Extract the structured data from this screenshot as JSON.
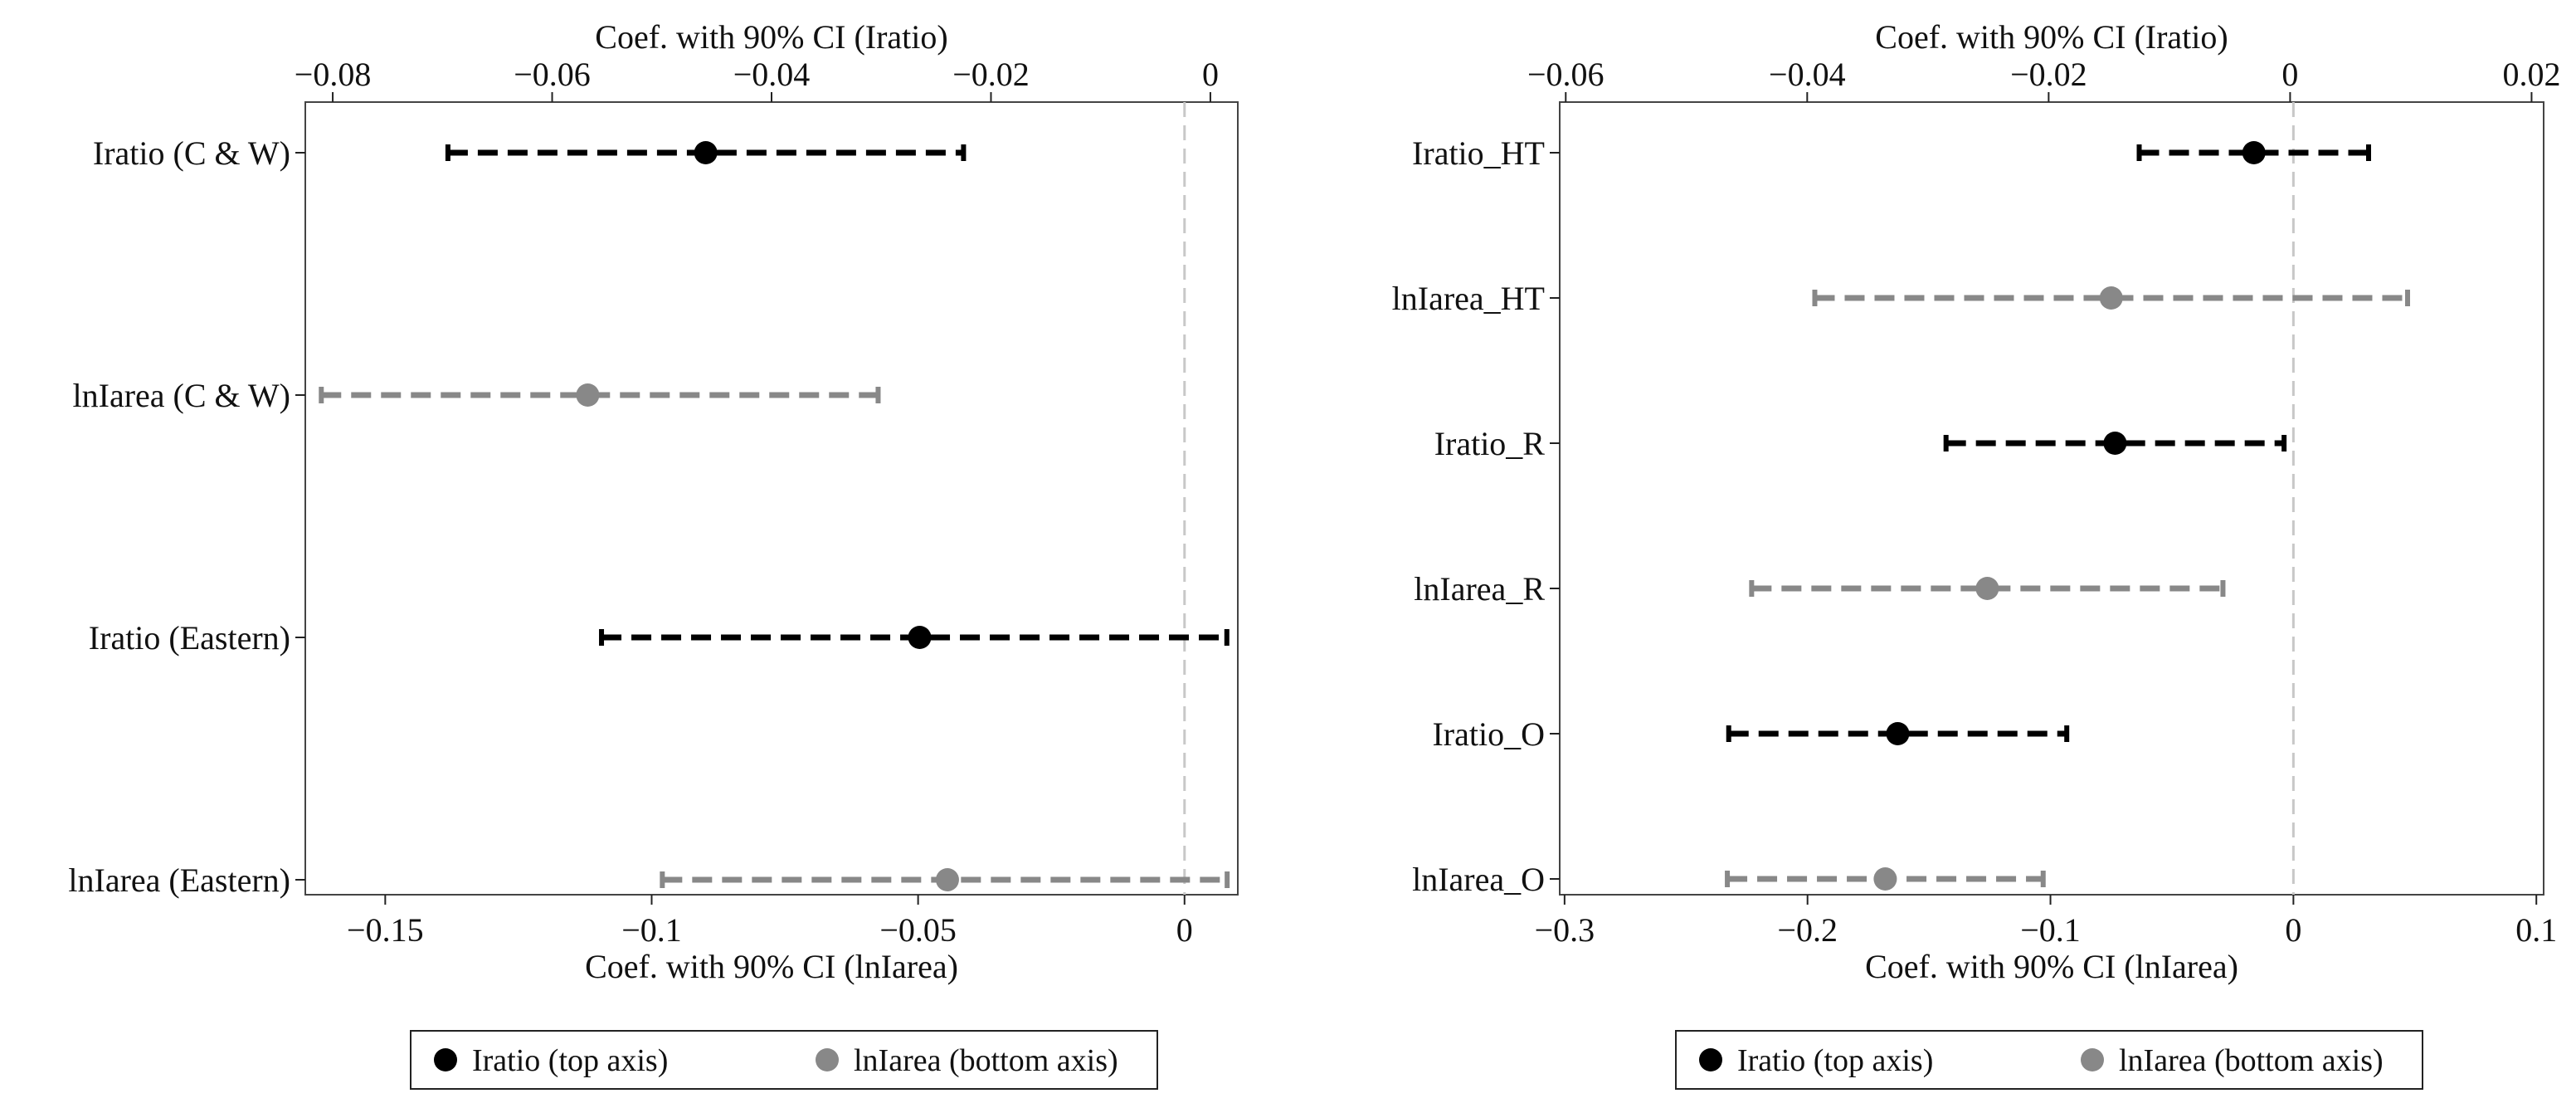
{
  "colors": {
    "Iratio": "#000000",
    "lnIarea": "#888888",
    "zero_line": "#c8c8c8",
    "frame": "#444444"
  },
  "chart_data": [
    {
      "type": "coefficient-plot",
      "top_axis_title": "Coef. with 90% CI (Iratio)",
      "bottom_axis_title": "Coef. with 90% CI (lnIarea)",
      "top_axis": {
        "min": -0.0825,
        "max": 0.0025,
        "ticks": [
          -0.08,
          -0.06,
          -0.04,
          -0.02,
          0
        ],
        "tick_labels": [
          "−0.08",
          "−0.06",
          "−0.04",
          "−0.02",
          "0"
        ]
      },
      "bottom_axis": {
        "min": -0.165,
        "max": 0.01,
        "ticks": [
          -0.15,
          -0.1,
          -0.05,
          0
        ],
        "tick_labels": [
          "−0.15",
          "−0.1",
          "−0.05",
          "0"
        ]
      },
      "zero_line_value_bottom": 0,
      "rows": [
        {
          "label": "Iratio (C & W)",
          "series": "Iratio",
          "axis": "top",
          "coef": -0.046,
          "lo": -0.0695,
          "hi": -0.0225
        },
        {
          "label": "lnIarea (C & W)",
          "series": "lnIarea",
          "axis": "bottom",
          "coef": -0.112,
          "lo": -0.162,
          "hi": -0.0575
        },
        {
          "label": "Iratio (Eastern)",
          "series": "Iratio",
          "axis": "top",
          "coef": -0.0265,
          "lo": -0.0555,
          "hi": 0.0015
        },
        {
          "label": "lnIarea (Eastern)",
          "series": "lnIarea",
          "axis": "bottom",
          "coef": -0.0445,
          "lo": -0.098,
          "hi": 0.008
        }
      ],
      "legend": [
        {
          "series": "Iratio",
          "label": "Iratio (top axis)"
        },
        {
          "series": "lnIarea",
          "label": "lnIarea (bottom axis)"
        }
      ]
    },
    {
      "type": "coefficient-plot",
      "top_axis_title": "Coef. with 90% CI (Iratio)",
      "bottom_axis_title": "Coef. with 90% CI (lnIarea)",
      "top_axis": {
        "min": -0.0605,
        "max": 0.021,
        "ticks": [
          -0.06,
          -0.04,
          -0.02,
          0,
          0.02
        ],
        "tick_labels": [
          "−0.06",
          "−0.04",
          "−0.02",
          "0",
          "0.02"
        ]
      },
      "bottom_axis": {
        "min": -0.302,
        "max": 0.103,
        "ticks": [
          -0.3,
          -0.2,
          -0.1,
          0,
          0.1
        ],
        "tick_labels": [
          "−0.3",
          "−0.2",
          "−0.1",
          "0",
          "0.1"
        ]
      },
      "zero_line_value_bottom": 0,
      "rows": [
        {
          "label": "Iratio_HT",
          "series": "Iratio",
          "axis": "top",
          "coef": -0.003,
          "lo": -0.0125,
          "hi": 0.0065
        },
        {
          "label": "lnIarea_HT",
          "series": "lnIarea",
          "axis": "bottom",
          "coef": -0.075,
          "lo": -0.197,
          "hi": 0.047
        },
        {
          "label": "Iratio_R",
          "series": "Iratio",
          "axis": "top",
          "coef": -0.0145,
          "lo": -0.0285,
          "hi": -0.0005
        },
        {
          "label": "lnIarea_R",
          "series": "lnIarea",
          "axis": "bottom",
          "coef": -0.126,
          "lo": -0.223,
          "hi": -0.029
        },
        {
          "label": "Iratio_O",
          "series": "Iratio",
          "axis": "top",
          "coef": -0.0325,
          "lo": -0.0465,
          "hi": -0.0185
        },
        {
          "label": "lnIarea_O",
          "series": "lnIarea",
          "axis": "bottom",
          "coef": -0.168,
          "lo": -0.233,
          "hi": -0.103
        }
      ],
      "legend": [
        {
          "series": "Iratio",
          "label": "Iratio (top axis)"
        },
        {
          "series": "lnIarea",
          "label": "lnIarea (bottom axis)"
        }
      ]
    }
  ]
}
